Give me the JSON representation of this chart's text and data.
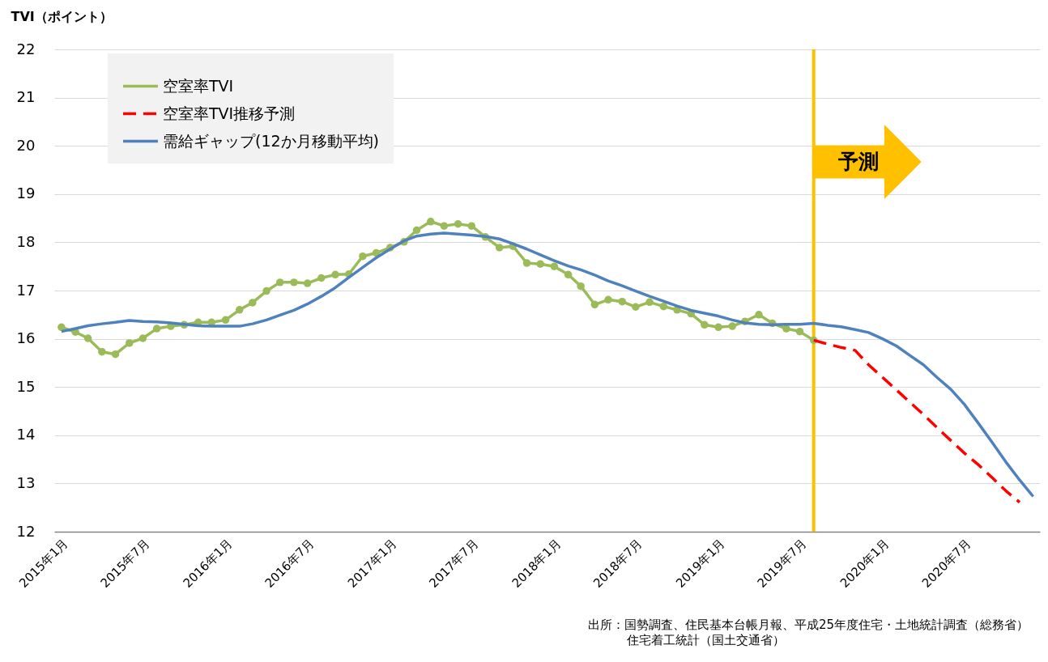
{
  "chart_data": {
    "type": "line",
    "ylabel": "TVI（ポイント）",
    "xlim": [
      "2014-12-16",
      "2020-12-16"
    ],
    "xticks": [
      {
        "value": "2015-01",
        "label": "2015年1月"
      },
      {
        "value": "2015-07",
        "label": "2015年7月"
      },
      {
        "value": "2016-01",
        "label": "2016年1月"
      },
      {
        "value": "2016-07",
        "label": "2016年7月"
      },
      {
        "value": "2017-01",
        "label": "2017年1月"
      },
      {
        "value": "2017-07",
        "label": "2017年7月"
      },
      {
        "value": "2018-01",
        "label": "2018年1月"
      },
      {
        "value": "2018-07",
        "label": "2018年7月"
      },
      {
        "value": "2019-01",
        "label": "2019年1月"
      },
      {
        "value": "2019-07",
        "label": "2019年7月"
      },
      {
        "value": "2020-01",
        "label": "2020年1月"
      },
      {
        "value": "2020-07",
        "label": "2020年7月"
      }
    ],
    "ylim": [
      12,
      22
    ],
    "yticks": [
      12,
      13,
      14,
      15,
      16,
      17,
      18,
      19,
      20,
      21,
      22
    ],
    "grid": "y",
    "legend": "top left",
    "series": [
      {
        "name": "空室率TVI",
        "color": "#9bbb59",
        "marker": "circle",
        "x": [
          "2015-01",
          "2015-02",
          "2015-03",
          "2015-04",
          "2015-05",
          "2015-06",
          "2015-07",
          "2015-08",
          "2015-09",
          "2015-10",
          "2015-11",
          "2015-12",
          "2016-01",
          "2016-02",
          "2016-03",
          "2016-04",
          "2016-05",
          "2016-06",
          "2016-07",
          "2016-08",
          "2016-09",
          "2016-10",
          "2016-11",
          "2016-12",
          "2017-01",
          "2017-02",
          "2017-03",
          "2017-04",
          "2017-05",
          "2017-06",
          "2017-07",
          "2017-08",
          "2017-09",
          "2017-10",
          "2017-11",
          "2017-12",
          "2018-01",
          "2018-02",
          "2018-03",
          "2018-04",
          "2018-05",
          "2018-06",
          "2018-07",
          "2018-08",
          "2018-09",
          "2018-10",
          "2018-11",
          "2018-12",
          "2019-01",
          "2019-02",
          "2019-03",
          "2019-04",
          "2019-05",
          "2019-06",
          "2019-07",
          "2019-08"
        ],
        "values": [
          16.24,
          16.14,
          16.01,
          15.73,
          15.68,
          15.91,
          16.01,
          16.21,
          16.26,
          16.29,
          16.34,
          16.34,
          16.39,
          16.6,
          16.75,
          16.99,
          17.17,
          17.17,
          17.15,
          17.26,
          17.33,
          17.34,
          17.71,
          17.78,
          17.89,
          18.01,
          18.25,
          18.43,
          18.34,
          18.38,
          18.34,
          18.11,
          17.89,
          17.92,
          17.57,
          17.55,
          17.5,
          17.33,
          17.09,
          16.71,
          16.81,
          16.77,
          16.66,
          16.76,
          16.67,
          16.6,
          16.52,
          16.29,
          16.24,
          16.26,
          16.36,
          16.5,
          16.32,
          16.21,
          16.15,
          15.97
        ]
      },
      {
        "name": "空室率TVI推移予測",
        "color": "#ff0000",
        "line_style": "dashed",
        "x": [
          "2019-08",
          "2019-09",
          "2019-10",
          "2019-11",
          "2019-12",
          "2020-01",
          "2020-02",
          "2020-03",
          "2020-04",
          "2020-05",
          "2020-06",
          "2020-07",
          "2020-08",
          "2020-09",
          "2020-10",
          "2020-11"
        ],
        "values": [
          15.97,
          15.89,
          15.82,
          15.76,
          15.46,
          15.2,
          14.94,
          14.69,
          14.43,
          14.16,
          13.89,
          13.63,
          13.39,
          13.12,
          12.85,
          12.61
        ]
      },
      {
        "name": "需給ギャップ(12か月移動平均)",
        "color": "#4f81bd",
        "x": [
          "2015-01",
          "2015-02",
          "2015-03",
          "2015-04",
          "2015-05",
          "2015-06",
          "2015-07",
          "2015-08",
          "2015-09",
          "2015-10",
          "2015-11",
          "2015-12",
          "2016-01",
          "2016-02",
          "2016-03",
          "2016-04",
          "2016-05",
          "2016-06",
          "2016-07",
          "2016-08",
          "2016-09",
          "2016-10",
          "2016-11",
          "2016-12",
          "2017-01",
          "2017-02",
          "2017-03",
          "2017-04",
          "2017-05",
          "2017-06",
          "2017-07",
          "2017-08",
          "2017-09",
          "2017-10",
          "2017-11",
          "2017-12",
          "2018-01",
          "2018-02",
          "2018-03",
          "2018-04",
          "2018-05",
          "2018-06",
          "2018-07",
          "2018-08",
          "2018-09",
          "2018-10",
          "2018-11",
          "2018-12",
          "2019-01",
          "2019-02",
          "2019-03",
          "2019-04",
          "2019-05",
          "2019-06",
          "2019-07",
          "2019-08",
          "2019-09",
          "2019-10",
          "2019-11",
          "2019-12",
          "2020-01",
          "2020-02",
          "2020-03",
          "2020-04",
          "2020-05",
          "2020-06",
          "2020-07",
          "2020-08",
          "2020-09",
          "2020-10",
          "2020-11",
          "2020-12"
        ],
        "values": [
          16.15,
          16.21,
          16.27,
          16.31,
          16.34,
          16.38,
          16.36,
          16.35,
          16.33,
          16.3,
          16.27,
          16.26,
          16.26,
          16.26,
          16.31,
          16.39,
          16.49,
          16.59,
          16.72,
          16.88,
          17.06,
          17.27,
          17.48,
          17.68,
          17.86,
          18.03,
          18.13,
          18.17,
          18.19,
          18.17,
          18.15,
          18.12,
          18.07,
          17.97,
          17.86,
          17.74,
          17.62,
          17.51,
          17.43,
          17.32,
          17.2,
          17.1,
          16.99,
          16.88,
          16.78,
          16.68,
          16.59,
          16.53,
          16.47,
          16.39,
          16.33,
          16.3,
          16.29,
          16.3,
          16.3,
          16.32,
          16.28,
          16.25,
          16.19,
          16.13,
          16.0,
          15.85,
          15.66,
          15.46,
          15.2,
          14.95,
          14.64,
          14.25,
          13.85,
          13.45,
          13.07,
          12.73
        ]
      }
    ],
    "ref_lines": [
      {
        "axis": "x",
        "value": "2019-08",
        "label": "予測",
        "color": "#ffc000"
      }
    ],
    "annotations": [
      "出所：国勢調査、住民基本台帳月報、平成25年度住宅・土地統計調査（総務省）",
      "住宅着工統計（国土交通省）"
    ]
  }
}
